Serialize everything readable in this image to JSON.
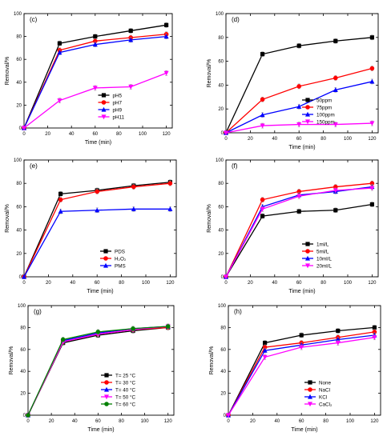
{
  "chart_data": [
    {
      "type": "line",
      "panel_label": "(c)",
      "xlabel": "Time (min)",
      "ylabel": "Removal/%",
      "xlim": [
        0,
        125
      ],
      "ylim": [
        0,
        100
      ],
      "xticks": [
        "0",
        "20",
        "40",
        "60",
        "80",
        "100",
        "120"
      ],
      "yticks": [
        "0",
        "20",
        "40",
        "60",
        "80",
        "100"
      ],
      "legend_position": "lower-right",
      "x": [
        0,
        30,
        60,
        90,
        120
      ],
      "series": [
        {
          "name": "pH5",
          "color": "#000000",
          "marker": "square",
          "values": [
            0,
            74,
            80,
            85,
            90
          ]
        },
        {
          "name": "pH7",
          "color": "#ff0000",
          "marker": "circle",
          "values": [
            0,
            68,
            76,
            79,
            82
          ]
        },
        {
          "name": "pH9",
          "color": "#0000ff",
          "marker": "triangle",
          "values": [
            0,
            66,
            73,
            77,
            80
          ]
        },
        {
          "name": "pH11",
          "color": "#ff00ff",
          "marker": "triangle-down",
          "values": [
            0,
            24,
            35,
            36,
            48
          ]
        }
      ]
    },
    {
      "type": "line",
      "panel_label": "(d)",
      "xlabel": "Time (min)",
      "ylabel": "Removal/%",
      "xlim": [
        0,
        125
      ],
      "ylim": [
        0,
        100
      ],
      "xticks": [
        "0",
        "20",
        "40",
        "60",
        "80",
        "100",
        "120"
      ],
      "yticks": [
        "0",
        "20",
        "40",
        "60",
        "80",
        "100"
      ],
      "legend_position": "lower-right",
      "x": [
        0,
        30,
        60,
        90,
        120
      ],
      "series": [
        {
          "name": "50ppm",
          "color": "#000000",
          "marker": "square",
          "values": [
            0,
            66,
            73,
            77,
            80
          ]
        },
        {
          "name": "75ppm",
          "color": "#ff0000",
          "marker": "circle",
          "values": [
            0,
            28,
            39,
            46,
            54
          ]
        },
        {
          "name": "100ppm",
          "color": "#0000ff",
          "marker": "triangle",
          "values": [
            0,
            15,
            22,
            36,
            43
          ]
        },
        {
          "name": "150ppm",
          "color": "#ff00ff",
          "marker": "triangle-down",
          "values": [
            0,
            6,
            7,
            7,
            8
          ]
        }
      ]
    },
    {
      "type": "line",
      "panel_label": "(e)",
      "xlabel": "Time (min)",
      "ylabel": "Removal/%",
      "xlim": [
        0,
        125
      ],
      "ylim": [
        0,
        100
      ],
      "xticks": [
        "0",
        "20",
        "40",
        "60",
        "80",
        "100",
        "120"
      ],
      "yticks": [
        "0",
        "20",
        "40",
        "60",
        "80",
        "100"
      ],
      "legend_position": "lower-right",
      "x": [
        0,
        30,
        60,
        90,
        120
      ],
      "series": [
        {
          "name": "PDS",
          "color": "#000000",
          "marker": "square",
          "values": [
            0,
            71,
            74,
            78,
            81
          ]
        },
        {
          "name": "H₂O₂",
          "color": "#ff0000",
          "marker": "circle",
          "values": [
            0,
            66,
            73,
            77,
            80
          ]
        },
        {
          "name": "PMS",
          "color": "#0000ff",
          "marker": "triangle",
          "values": [
            0,
            56,
            57,
            58,
            58
          ]
        }
      ]
    },
    {
      "type": "line",
      "panel_label": "(f)",
      "xlabel": "Time (min)",
      "ylabel": "Removal/%",
      "xlim": [
        0,
        125
      ],
      "ylim": [
        0,
        100
      ],
      "xticks": [
        "0",
        "20",
        "40",
        "60",
        "80",
        "100",
        "120"
      ],
      "yticks": [
        "0",
        "20",
        "40",
        "60",
        "80",
        "100"
      ],
      "legend_position": "lower-right",
      "x": [
        0,
        30,
        60,
        90,
        120
      ],
      "series": [
        {
          "name": "1ml/L",
          "color": "#000000",
          "marker": "square",
          "values": [
            0,
            52,
            56,
            57,
            62
          ]
        },
        {
          "name": "5ml/L",
          "color": "#ff0000",
          "marker": "circle",
          "values": [
            0,
            66,
            73,
            77,
            80
          ]
        },
        {
          "name": "10ml/L",
          "color": "#0000ff",
          "marker": "triangle",
          "values": [
            0,
            60,
            70,
            73,
            77
          ]
        },
        {
          "name": "20ml/L",
          "color": "#ff00ff",
          "marker": "triangle-down",
          "values": [
            0,
            58,
            69,
            74,
            76
          ]
        }
      ]
    },
    {
      "type": "line",
      "panel_label": "(g)",
      "xlabel": "Time (min)",
      "ylabel": "Removal/%",
      "xlim": [
        0,
        125
      ],
      "ylim": [
        0,
        100
      ],
      "xticks": [
        "0",
        "20",
        "40",
        "60",
        "80",
        "100",
        "120"
      ],
      "yticks": [
        "0",
        "20",
        "40",
        "60",
        "80",
        "100"
      ],
      "legend_position": "lower-right",
      "x": [
        0,
        30,
        60,
        90,
        120
      ],
      "series": [
        {
          "name": "T= 25 °C",
          "color": "#000000",
          "marker": "square",
          "values": [
            0,
            66,
            73,
            77,
            80
          ]
        },
        {
          "name": "T= 30 °C",
          "color": "#ff0000",
          "marker": "circle",
          "values": [
            0,
            67,
            74,
            78,
            80
          ]
        },
        {
          "name": "T= 40 °C",
          "color": "#0000ff",
          "marker": "triangle",
          "values": [
            0,
            68,
            75,
            79,
            81
          ]
        },
        {
          "name": "T= 50 °C",
          "color": "#ff00ff",
          "marker": "triangle-down",
          "values": [
            0,
            67,
            74,
            78,
            81
          ]
        },
        {
          "name": "T= 60 °C",
          "color": "#008000",
          "marker": "circle",
          "values": [
            0,
            69,
            76,
            79,
            81
          ]
        }
      ]
    },
    {
      "type": "line",
      "panel_label": "(h)",
      "xlabel": "Time (min)",
      "ylabel": "Removal/%",
      "xlim": [
        0,
        125
      ],
      "ylim": [
        0,
        100
      ],
      "xticks": [
        "0",
        "20",
        "40",
        "60",
        "80",
        "100",
        "120"
      ],
      "yticks": [
        "0",
        "20",
        "40",
        "60",
        "80",
        "100"
      ],
      "legend_position": "lower-right",
      "x": [
        0,
        30,
        60,
        90,
        120
      ],
      "series": [
        {
          "name": "None",
          "color": "#000000",
          "marker": "square",
          "values": [
            0,
            66,
            73,
            77,
            80
          ]
        },
        {
          "name": "NaCl",
          "color": "#ff0000",
          "marker": "circle",
          "values": [
            0,
            62,
            66,
            71,
            76
          ]
        },
        {
          "name": "KCl",
          "color": "#0000ff",
          "marker": "triangle",
          "values": [
            0,
            59,
            64,
            69,
            73
          ]
        },
        {
          "name": "CaCl₂",
          "color": "#ff00ff",
          "marker": "triangle-down",
          "values": [
            0,
            53,
            62,
            66,
            71
          ]
        }
      ]
    }
  ]
}
